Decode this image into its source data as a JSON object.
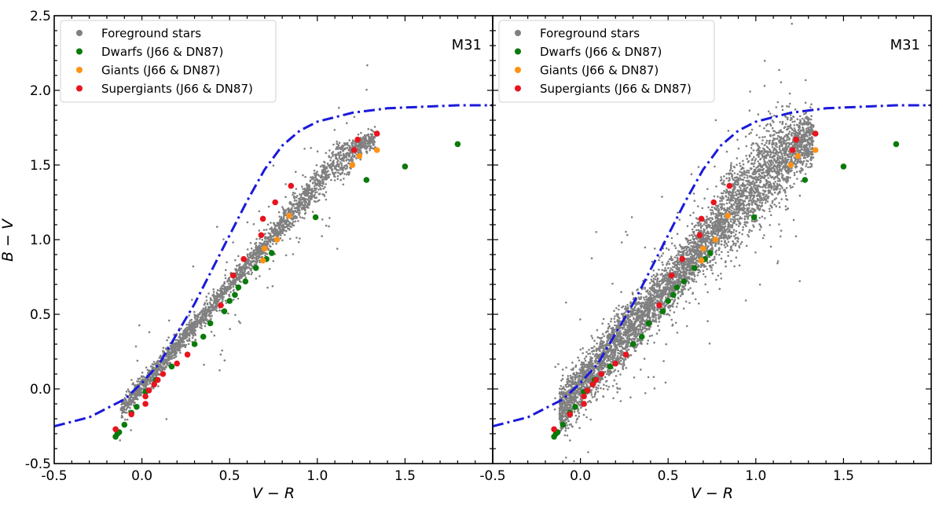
{
  "figure": {
    "x_label": "V − R",
    "y_label": "B − V"
  },
  "chart_data": [
    {
      "type": "scatter",
      "title": "M31",
      "xlabel": "V − R",
      "ylabel": "B − V",
      "xlim": [
        -0.5,
        2.0
      ],
      "ylim": [
        -0.5,
        2.5
      ],
      "xticks": [
        "-0.5",
        "0.0",
        "0.5",
        "1.0",
        "1.5"
      ],
      "yticks": [
        "-0.5",
        "0.0",
        "0.5",
        "1.0",
        "1.5",
        "2.0",
        "2.5"
      ],
      "grid": false,
      "legend_position": "top-left",
      "foreground_cloud": {
        "name": "Foreground stars",
        "color": "#808080",
        "spread": "narrow"
      },
      "series": [
        {
          "name": "Dwarfs (J66 & DN87)",
          "color": "#0a7a0a",
          "points": [
            [
              -0.15,
              -0.32
            ],
            [
              -0.14,
              -0.3
            ],
            [
              -0.13,
              -0.29
            ],
            [
              -0.1,
              -0.24
            ],
            [
              -0.06,
              -0.16
            ],
            [
              -0.03,
              -0.12
            ],
            [
              0.02,
              -0.02
            ],
            [
              0.08,
              0.06
            ],
            [
              0.17,
              0.15
            ],
            [
              0.3,
              0.3
            ],
            [
              0.35,
              0.35
            ],
            [
              0.39,
              0.44
            ],
            [
              0.47,
              0.52
            ],
            [
              0.5,
              0.59
            ],
            [
              0.53,
              0.63
            ],
            [
              0.55,
              0.68
            ],
            [
              0.59,
              0.72
            ],
            [
              0.65,
              0.81
            ],
            [
              0.71,
              0.87
            ],
            [
              0.74,
              0.91
            ],
            [
              0.99,
              1.15
            ],
            [
              1.28,
              1.4
            ],
            [
              1.5,
              1.49
            ],
            [
              1.8,
              1.64
            ]
          ]
        },
        {
          "name": "Giants (J66 & DN87)",
          "color": "#ff9214",
          "points": [
            [
              0.69,
              0.86
            ],
            [
              0.7,
              0.94
            ],
            [
              0.77,
              1.0
            ],
            [
              0.84,
              1.16
            ],
            [
              1.2,
              1.5
            ],
            [
              1.24,
              1.56
            ],
            [
              1.34,
              1.6
            ]
          ]
        },
        {
          "name": "Supergiants (J66 & DN87)",
          "color": "#e8141e",
          "points": [
            [
              -0.15,
              -0.27
            ],
            [
              -0.06,
              -0.17
            ],
            [
              0.02,
              -0.1
            ],
            [
              0.02,
              -0.05
            ],
            [
              0.04,
              -0.01
            ],
            [
              0.07,
              0.03
            ],
            [
              0.09,
              0.06
            ],
            [
              0.12,
              0.1
            ],
            [
              0.2,
              0.17
            ],
            [
              0.26,
              0.23
            ],
            [
              0.45,
              0.56
            ],
            [
              0.52,
              0.76
            ],
            [
              0.58,
              0.87
            ],
            [
              0.68,
              1.03
            ],
            [
              0.69,
              1.14
            ],
            [
              0.76,
              1.25
            ],
            [
              0.85,
              1.36
            ],
            [
              1.21,
              1.6
            ],
            [
              1.23,
              1.67
            ],
            [
              1.34,
              1.71
            ]
          ]
        }
      ],
      "curve": {
        "color": "#1a1adb",
        "style": "dash-dot",
        "points": [
          [
            -0.5,
            -0.25
          ],
          [
            -0.3,
            -0.19
          ],
          [
            -0.1,
            -0.07
          ],
          [
            0.0,
            0.04
          ],
          [
            0.1,
            0.17
          ],
          [
            0.2,
            0.37
          ],
          [
            0.3,
            0.57
          ],
          [
            0.4,
            0.8
          ],
          [
            0.5,
            1.03
          ],
          [
            0.6,
            1.26
          ],
          [
            0.7,
            1.47
          ],
          [
            0.8,
            1.63
          ],
          [
            0.9,
            1.73
          ],
          [
            1.0,
            1.79
          ],
          [
            1.2,
            1.85
          ],
          [
            1.4,
            1.88
          ],
          [
            1.6,
            1.89
          ],
          [
            1.8,
            1.9
          ],
          [
            2.0,
            1.9
          ]
        ]
      }
    },
    {
      "type": "scatter",
      "title": "M31",
      "xlabel": "V − R",
      "ylabel": "B − V",
      "xlim": [
        -0.5,
        2.0
      ],
      "ylim": [
        -0.5,
        2.5
      ],
      "xticks": [
        "-0.5",
        "0.0",
        "0.5",
        "1.0",
        "1.5"
      ],
      "yticks": [],
      "grid": false,
      "legend_position": "top-left",
      "foreground_cloud": {
        "name": "Foreground stars",
        "color": "#808080",
        "spread": "wide"
      },
      "series": [
        {
          "name": "Dwarfs (J66 & DN87)",
          "color": "#0a7a0a",
          "points": [
            [
              -0.15,
              -0.32
            ],
            [
              -0.14,
              -0.3
            ],
            [
              -0.13,
              -0.29
            ],
            [
              -0.1,
              -0.24
            ],
            [
              -0.06,
              -0.16
            ],
            [
              -0.03,
              -0.12
            ],
            [
              0.02,
              -0.02
            ],
            [
              0.08,
              0.06
            ],
            [
              0.17,
              0.15
            ],
            [
              0.3,
              0.3
            ],
            [
              0.35,
              0.35
            ],
            [
              0.39,
              0.44
            ],
            [
              0.47,
              0.52
            ],
            [
              0.5,
              0.59
            ],
            [
              0.53,
              0.63
            ],
            [
              0.55,
              0.68
            ],
            [
              0.59,
              0.72
            ],
            [
              0.65,
              0.81
            ],
            [
              0.71,
              0.87
            ],
            [
              0.74,
              0.91
            ],
            [
              0.99,
              1.15
            ],
            [
              1.28,
              1.4
            ],
            [
              1.5,
              1.49
            ],
            [
              1.8,
              1.64
            ]
          ]
        },
        {
          "name": "Giants (J66 & DN87)",
          "color": "#ff9214",
          "points": [
            [
              0.69,
              0.86
            ],
            [
              0.7,
              0.94
            ],
            [
              0.77,
              1.0
            ],
            [
              0.84,
              1.16
            ],
            [
              1.2,
              1.5
            ],
            [
              1.24,
              1.56
            ],
            [
              1.34,
              1.6
            ]
          ]
        },
        {
          "name": "Supergiants (J66 & DN87)",
          "color": "#e8141e",
          "points": [
            [
              -0.15,
              -0.27
            ],
            [
              -0.06,
              -0.17
            ],
            [
              0.02,
              -0.1
            ],
            [
              0.02,
              -0.05
            ],
            [
              0.04,
              -0.01
            ],
            [
              0.07,
              0.03
            ],
            [
              0.09,
              0.06
            ],
            [
              0.12,
              0.1
            ],
            [
              0.2,
              0.17
            ],
            [
              0.26,
              0.23
            ],
            [
              0.45,
              0.56
            ],
            [
              0.52,
              0.76
            ],
            [
              0.58,
              0.87
            ],
            [
              0.68,
              1.03
            ],
            [
              0.69,
              1.14
            ],
            [
              0.76,
              1.25
            ],
            [
              0.85,
              1.36
            ],
            [
              1.21,
              1.6
            ],
            [
              1.23,
              1.67
            ],
            [
              1.34,
              1.71
            ]
          ]
        }
      ],
      "curve": {
        "color": "#1a1adb",
        "style": "dash-dot",
        "points": [
          [
            -0.5,
            -0.25
          ],
          [
            -0.3,
            -0.19
          ],
          [
            -0.1,
            -0.07
          ],
          [
            0.0,
            0.04
          ],
          [
            0.1,
            0.17
          ],
          [
            0.2,
            0.37
          ],
          [
            0.3,
            0.57
          ],
          [
            0.4,
            0.8
          ],
          [
            0.5,
            1.03
          ],
          [
            0.6,
            1.26
          ],
          [
            0.7,
            1.47
          ],
          [
            0.8,
            1.63
          ],
          [
            0.9,
            1.73
          ],
          [
            1.0,
            1.79
          ],
          [
            1.2,
            1.85
          ],
          [
            1.4,
            1.88
          ],
          [
            1.6,
            1.89
          ],
          [
            1.8,
            1.9
          ],
          [
            2.0,
            1.9
          ]
        ]
      }
    }
  ]
}
